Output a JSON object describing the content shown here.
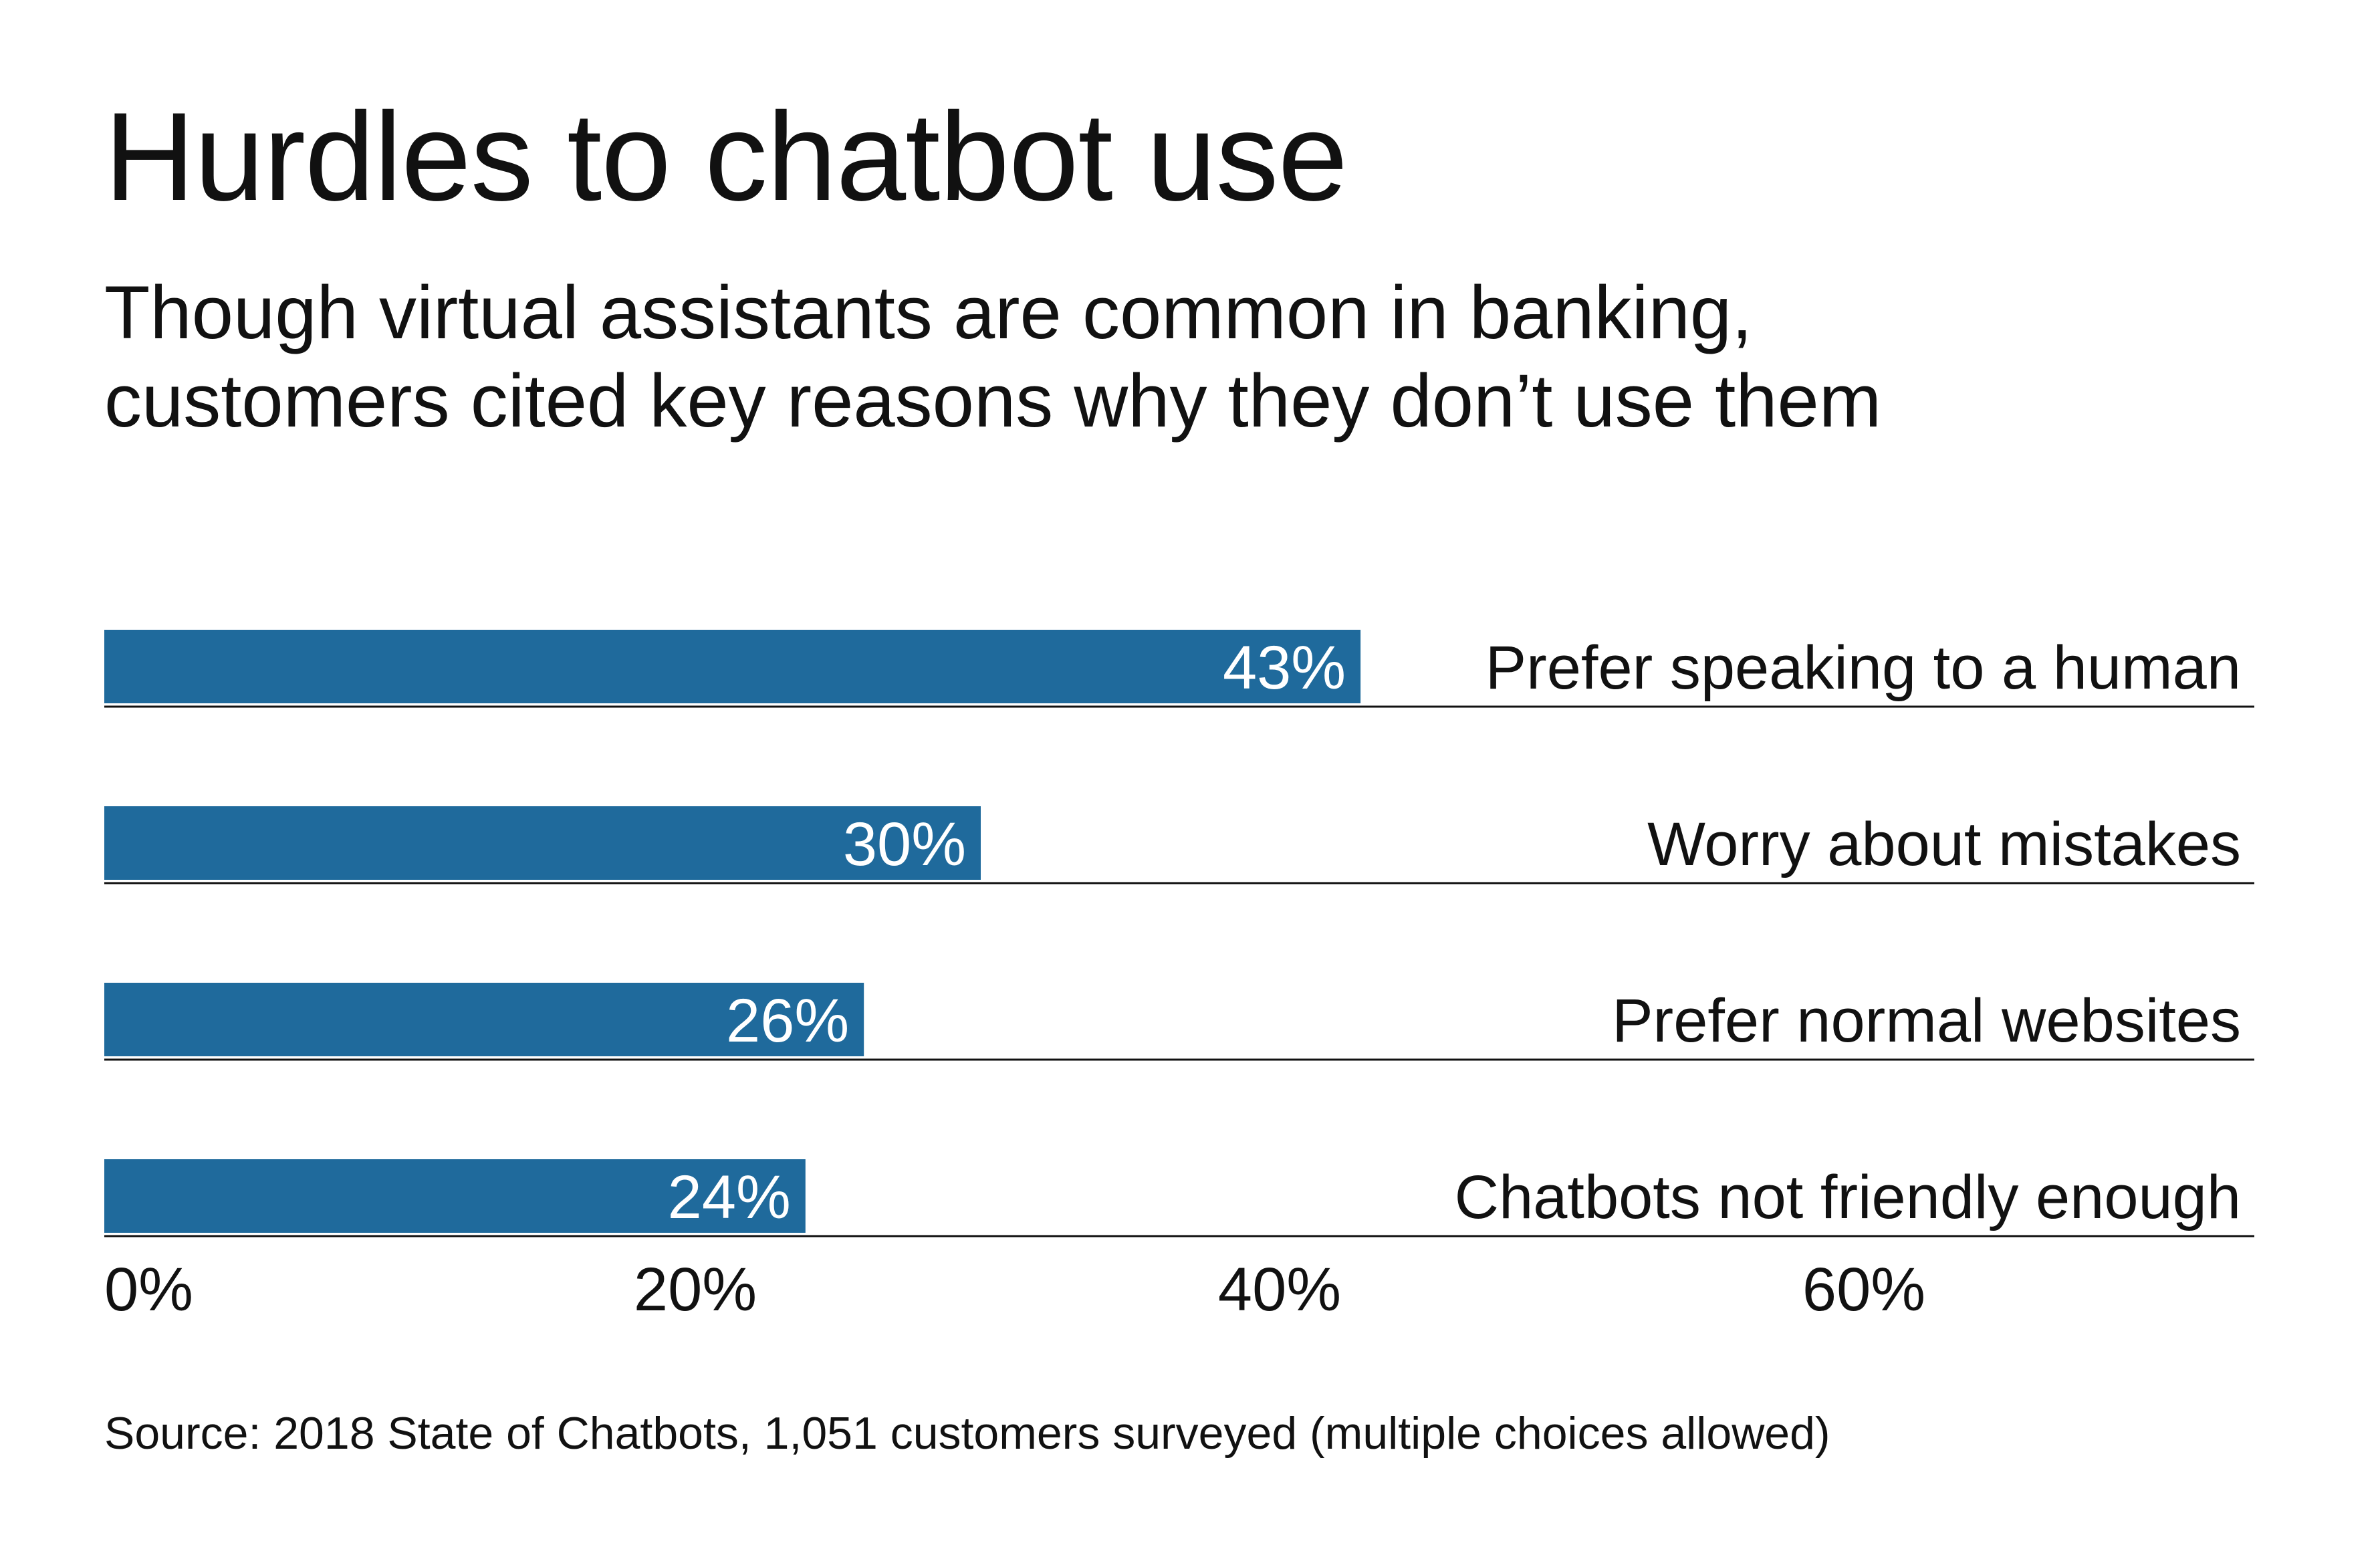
{
  "title": "Hurdles to chatbot use",
  "subtitle_lines": [
    "Though virtual assistants are common in banking,",
    "customers cited key reasons why they don’t use them"
  ],
  "source": "Source: 2018 State of Chatbots, 1,051 customers surveyed (multiple choices allowed)",
  "colors": {
    "bar": "#1f6a9c",
    "bar_label": "#ffffff",
    "text": "#111111",
    "rule": "#111111"
  },
  "chart_data": {
    "type": "bar",
    "orientation": "horizontal",
    "categories": [
      "Prefer speaking to a human",
      "Worry about mistakes",
      "Prefer normal websites",
      "Chatbots not friendly enough"
    ],
    "values": [
      43,
      30,
      26,
      24
    ],
    "value_labels": [
      "43%",
      "30%",
      "26%",
      "24%"
    ],
    "unit": "%",
    "xlim": [
      0,
      73
    ],
    "xticks": [
      0,
      20,
      40,
      60
    ],
    "xtick_labels": [
      "0%",
      "20%",
      "40%",
      "60%"
    ],
    "grid": false,
    "legend": false
  }
}
